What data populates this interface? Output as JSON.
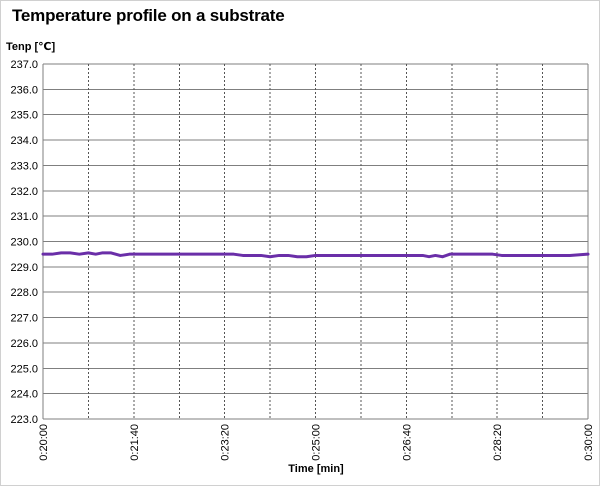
{
  "chart_data": {
    "type": "line",
    "title": "Temperature profile on a substrate",
    "xlabel": "Time [min]",
    "ylabel": "Tenp [℃]",
    "ylim": [
      223.0,
      237.0
    ],
    "ytick_step": 1.0,
    "xlim_seconds": [
      1200,
      1800
    ],
    "x_gridlines_seconds": [
      1200,
      1250,
      1300,
      1350,
      1400,
      1450,
      1500,
      1550,
      1600,
      1650,
      1700,
      1750,
      1800
    ],
    "x_tick_labels": [
      {
        "t": 1200,
        "label": "0:20:00"
      },
      {
        "t": 1300,
        "label": "0:21:40"
      },
      {
        "t": 1400,
        "label": "0:23:20"
      },
      {
        "t": 1500,
        "label": "0:25:00"
      },
      {
        "t": 1600,
        "label": "0:26:40"
      },
      {
        "t": 1700,
        "label": "0:28:20"
      },
      {
        "t": 1800,
        "label": "0:30:00"
      }
    ],
    "grid": true,
    "series": [
      {
        "color": "#6a2ea8",
        "points": [
          [
            1200,
            229.5
          ],
          [
            1210,
            229.5
          ],
          [
            1220,
            229.55
          ],
          [
            1230,
            229.55
          ],
          [
            1240,
            229.5
          ],
          [
            1250,
            229.55
          ],
          [
            1258,
            229.5
          ],
          [
            1265,
            229.55
          ],
          [
            1275,
            229.55
          ],
          [
            1285,
            229.45
          ],
          [
            1295,
            229.5
          ],
          [
            1310,
            229.5
          ],
          [
            1340,
            229.5
          ],
          [
            1370,
            229.5
          ],
          [
            1400,
            229.5
          ],
          [
            1410,
            229.5
          ],
          [
            1420,
            229.45
          ],
          [
            1440,
            229.45
          ],
          [
            1450,
            229.4
          ],
          [
            1460,
            229.45
          ],
          [
            1470,
            229.45
          ],
          [
            1480,
            229.4
          ],
          [
            1490,
            229.4
          ],
          [
            1500,
            229.45
          ],
          [
            1520,
            229.45
          ],
          [
            1550,
            229.45
          ],
          [
            1580,
            229.45
          ],
          [
            1610,
            229.45
          ],
          [
            1618,
            229.45
          ],
          [
            1625,
            229.4
          ],
          [
            1632,
            229.45
          ],
          [
            1640,
            229.4
          ],
          [
            1648,
            229.5
          ],
          [
            1665,
            229.5
          ],
          [
            1695,
            229.5
          ],
          [
            1705,
            229.45
          ],
          [
            1725,
            229.45
          ],
          [
            1750,
            229.45
          ],
          [
            1780,
            229.45
          ],
          [
            1800,
            229.5
          ]
        ]
      }
    ]
  }
}
